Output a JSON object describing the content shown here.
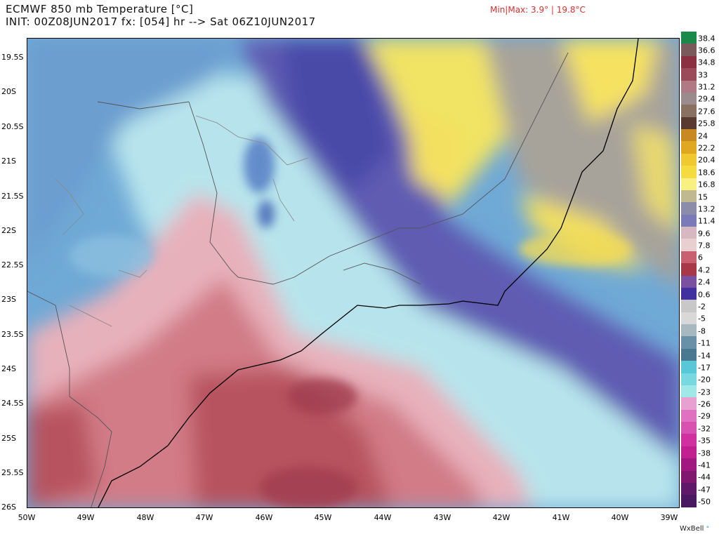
{
  "header": {
    "title": "ECMWF 850 mb Temperature [°C]",
    "init_line": "INIT: 00Z08JUN2017 fx: [054] hr --> Sat 06Z10JUN2017",
    "minmax": "Min|Max: 3.9° | 19.8°C",
    "minmax_color": "#d9302b"
  },
  "axes": {
    "lat_labels": [
      "19.5S",
      "20S",
      "20.5S",
      "21S",
      "21.5S",
      "22S",
      "22.5S",
      "23S",
      "23.5S",
      "24S",
      "24.5S",
      "25S",
      "25.5S",
      "26S"
    ],
    "lon_labels": [
      "50W",
      "49W",
      "48W",
      "47W",
      "46W",
      "45W",
      "44W",
      "43W",
      "42W",
      "41W",
      "40W",
      "39W"
    ]
  },
  "colorbar": {
    "labels": [
      "38.4",
      "36.6",
      "34.8",
      "33",
      "31.2",
      "29.4",
      "27.6",
      "25.8",
      "24",
      "22.2",
      "20.4",
      "18.6",
      "16.8",
      "15",
      "13.2",
      "11.4",
      "9.6",
      "7.8",
      "6",
      "4.2",
      "2.4",
      "0.6",
      "-2",
      "-5",
      "-8",
      "-11",
      "-14",
      "-17",
      "-20",
      "-23",
      "-26",
      "-29",
      "-32",
      "-35",
      "-38",
      "-41",
      "-44",
      "-47",
      "-50"
    ],
    "colors": [
      "#1a8a4a",
      "#7a5a5a",
      "#8a3040",
      "#9a4a58",
      "#b07a84",
      "#9a8c8c",
      "#8a7060",
      "#5a3a30",
      "#c88a20",
      "#e0a820",
      "#f0c830",
      "#f4dc40",
      "#f8f080",
      "#c0b890",
      "#8c8ca8",
      "#7a7ab8",
      "#d8b8c0",
      "#e8d0d0",
      "#c86070",
      "#a83848",
      "#7a50a0",
      "#4030a0",
      "#c8c8c8",
      "#d8d8d8",
      "#a8b8c0",
      "#6a90a8",
      "#4a7890",
      "#58c8d8",
      "#78d8e0",
      "#a0e8e8",
      "#e8a0d0",
      "#e070c0",
      "#d850b0",
      "#d030a0",
      "#c02090",
      "#a01880",
      "#801870",
      "#601868",
      "#4a1860"
    ]
  },
  "credit": {
    "text": "WxBell",
    "dot": "°"
  }
}
